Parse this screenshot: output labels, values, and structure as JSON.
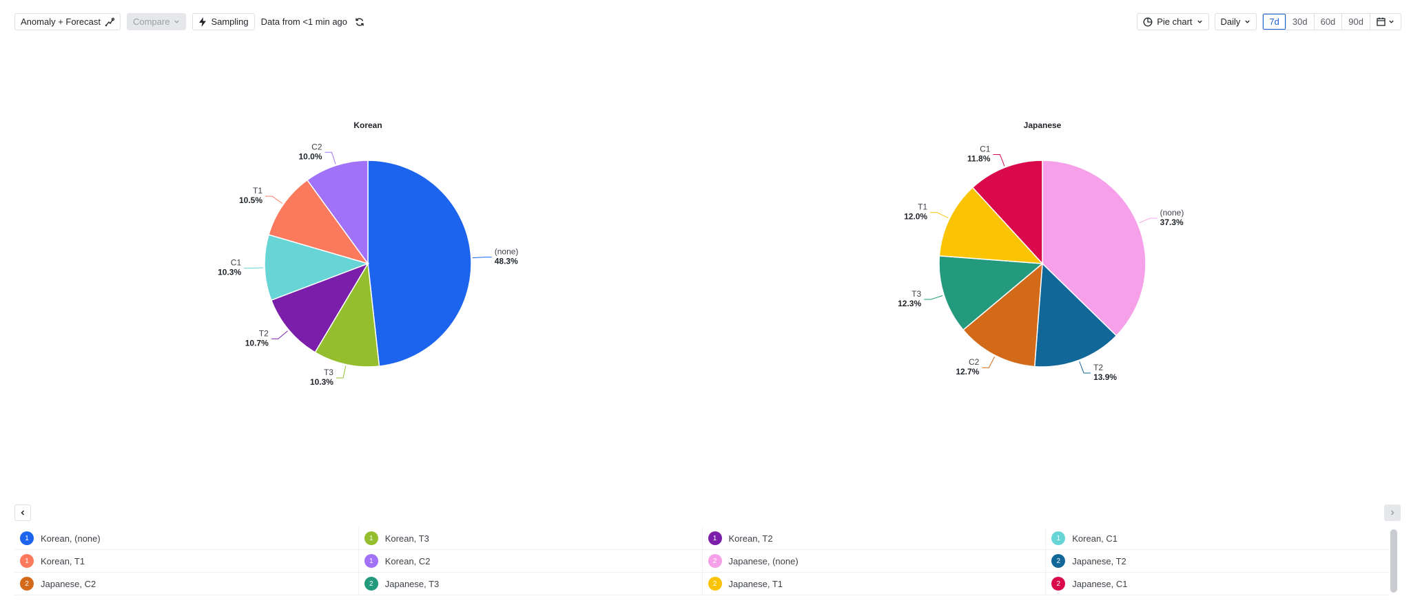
{
  "toolbar": {
    "analysis_label": "Anomaly + Forecast",
    "compare_label": "Compare",
    "sampling_label": "Sampling",
    "freshness_text": "Data from <1 min ago",
    "chart_type_label": "Pie chart",
    "interval_label": "Daily",
    "ranges": [
      "7d",
      "30d",
      "60d",
      "90d"
    ],
    "active_range": "7d"
  },
  "colors": {
    "blue": "#1c64ed",
    "lime": "#95be2f",
    "purple": "#7b1fab",
    "cyan": "#67d4d6",
    "coral": "#fb7a5e",
    "lavender": "#a172f8",
    "pink": "#f6a0e9",
    "navy": "#126799",
    "orange": "#d26a19",
    "teal": "#239a7d",
    "yellow": "#fac404",
    "crimson": "#d9094c"
  },
  "chart_data": [
    {
      "type": "pie",
      "title": "Korean",
      "slices": [
        {
          "label": "(none)",
          "value": 48.3,
          "display": "48.3%",
          "color": "#1c64ed"
        },
        {
          "label": "T3",
          "value": 10.3,
          "display": "10.3%",
          "color": "#95be2f"
        },
        {
          "label": "T2",
          "value": 10.7,
          "display": "10.7%",
          "color": "#7b1fab"
        },
        {
          "label": "C1",
          "value": 10.3,
          "display": "10.3%",
          "color": "#67d4d6"
        },
        {
          "label": "T1",
          "value": 10.5,
          "display": "10.5%",
          "color": "#fb7a5e"
        },
        {
          "label": "C2",
          "value": 10.0,
          "display": "10.0%",
          "color": "#a172f8"
        }
      ]
    },
    {
      "type": "pie",
      "title": "Japanese",
      "slices": [
        {
          "label": "(none)",
          "value": 37.3,
          "display": "37.3%",
          "color": "#f6a0e9"
        },
        {
          "label": "T2",
          "value": 13.9,
          "display": "13.9%",
          "color": "#126799"
        },
        {
          "label": "C2",
          "value": 12.7,
          "display": "12.7%",
          "color": "#d26a19"
        },
        {
          "label": "T3",
          "value": 12.3,
          "display": "12.3%",
          "color": "#239a7d"
        },
        {
          "label": "T1",
          "value": 12.0,
          "display": "12.0%",
          "color": "#fac404"
        },
        {
          "label": "C1",
          "value": 11.8,
          "display": "11.8%",
          "color": "#d9094c"
        }
      ]
    }
  ],
  "legend": [
    {
      "label": "Korean, (none)",
      "badge": "1",
      "color": "#1c64ed"
    },
    {
      "label": "Korean, T3",
      "badge": "1",
      "color": "#95be2f"
    },
    {
      "label": "Korean, T2",
      "badge": "1",
      "color": "#7b1fab"
    },
    {
      "label": "Korean, C1",
      "badge": "1",
      "color": "#67d4d6"
    },
    {
      "label": "Korean, T1",
      "badge": "1",
      "color": "#fb7a5e"
    },
    {
      "label": "Korean, C2",
      "badge": "1",
      "color": "#a172f8"
    },
    {
      "label": "Japanese, (none)",
      "badge": "2",
      "color": "#f6a0e9"
    },
    {
      "label": "Japanese, T2",
      "badge": "2",
      "color": "#126799"
    },
    {
      "label": "Japanese, C2",
      "badge": "2",
      "color": "#d26a19"
    },
    {
      "label": "Japanese, T3",
      "badge": "2",
      "color": "#239a7d"
    },
    {
      "label": "Japanese, T1",
      "badge": "2",
      "color": "#fac404"
    },
    {
      "label": "Japanese, C1",
      "badge": "2",
      "color": "#d9094c"
    }
  ]
}
